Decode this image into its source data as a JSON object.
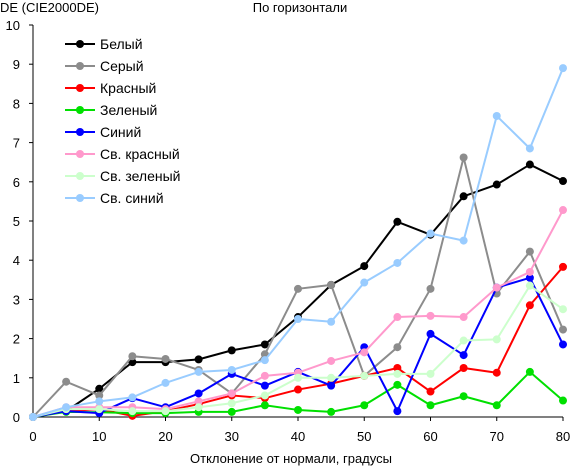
{
  "chart_data": {
    "type": "line",
    "title": "По горизонтали",
    "ylabel": "DE (CIE2000DE)",
    "xlabel": "Отклонение от нормали, градусы",
    "xlim": [
      0,
      80
    ],
    "ylim": [
      0,
      10
    ],
    "xticks": [
      0,
      10,
      20,
      30,
      40,
      50,
      60,
      70,
      80
    ],
    "yticks": [
      0,
      1,
      2,
      3,
      4,
      5,
      6,
      7,
      8,
      9,
      10
    ],
    "grid": "none",
    "legend_position": "top-left",
    "x": [
      0,
      5,
      10,
      15,
      20,
      25,
      30,
      35,
      40,
      45,
      50,
      55,
      60,
      65,
      70,
      75,
      80
    ],
    "series": [
      {
        "name": "Белый",
        "color": "#000000",
        "values": [
          0,
          0.15,
          0.72,
          1.4,
          1.4,
          1.47,
          1.7,
          1.85,
          2.55,
          3.37,
          3.85,
          4.98,
          4.65,
          5.63,
          5.93,
          6.44,
          6.02
        ]
      },
      {
        "name": "Серый",
        "color": "#8c8c8c",
        "values": [
          0,
          0.9,
          0.55,
          1.55,
          1.48,
          1.2,
          0.6,
          1.6,
          3.27,
          3.37,
          1.05,
          1.78,
          3.27,
          6.62,
          3.15,
          4.22,
          2.23
        ]
      },
      {
        "name": "Красный",
        "color": "#ff0000",
        "values": [
          0,
          0.15,
          0.2,
          0.03,
          0.15,
          0.33,
          0.55,
          0.48,
          0.7,
          0.85,
          1.05,
          1.25,
          0.65,
          1.25,
          1.13,
          2.85,
          3.83
        ]
      },
      {
        "name": "Зеленый",
        "color": "#00e000",
        "values": [
          0,
          0.13,
          0.12,
          0.1,
          0.1,
          0.13,
          0.13,
          0.3,
          0.18,
          0.13,
          0.3,
          0.82,
          0.3,
          0.53,
          0.3,
          1.15,
          0.42
        ]
      },
      {
        "name": "Синий",
        "color": "#0000ff",
        "values": [
          0,
          0.15,
          0.1,
          0.48,
          0.25,
          0.6,
          1.1,
          0.8,
          1.15,
          0.8,
          1.78,
          0.15,
          2.12,
          1.58,
          3.3,
          3.55,
          1.85
        ]
      },
      {
        "name": "Св. красный",
        "color": "#ff99cc",
        "values": [
          0,
          0.25,
          0.25,
          0.25,
          0.2,
          0.4,
          0.6,
          1.05,
          1.13,
          1.43,
          1.65,
          2.55,
          2.58,
          2.55,
          3.3,
          3.7,
          5.28
        ]
      },
      {
        "name": "Св. зеленый",
        "color": "#ccffcc",
        "values": [
          0,
          0.2,
          0.2,
          0.15,
          0.15,
          0.25,
          0.35,
          0.55,
          1.0,
          1.0,
          1.05,
          1.1,
          1.1,
          1.95,
          1.98,
          3.35,
          2.75
        ]
      },
      {
        "name": "Св. синий",
        "color": "#99ccff",
        "values": [
          0,
          0.25,
          0.4,
          0.5,
          0.87,
          1.15,
          1.2,
          1.45,
          2.5,
          2.43,
          3.43,
          3.93,
          4.68,
          4.5,
          7.68,
          6.85,
          8.9
        ]
      }
    ]
  }
}
